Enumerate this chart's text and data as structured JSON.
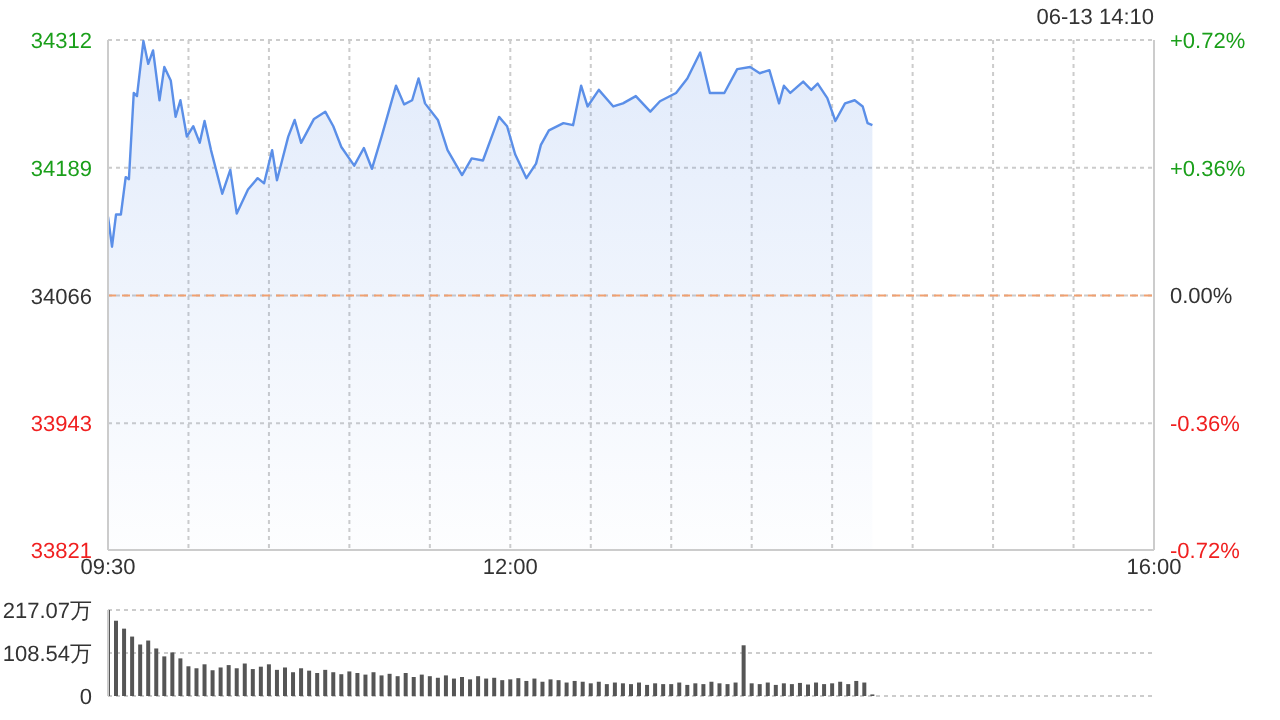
{
  "chart_data": [
    {
      "type": "area",
      "annotations": [
        "06-13 14:10"
      ],
      "xlim": [
        9.5,
        16
      ],
      "xticks": [
        {
          "value": 9.5,
          "label": "09:30"
        },
        {
          "value": 10,
          "label": null
        },
        {
          "value": 10.5,
          "label": null
        },
        {
          "value": 11,
          "label": null
        },
        {
          "value": 11.5,
          "label": null
        },
        {
          "value": 12,
          "label": "12:00"
        },
        {
          "value": 12.5,
          "label": null
        },
        {
          "value": 13,
          "label": null
        },
        {
          "value": 13.5,
          "label": null
        },
        {
          "value": 14,
          "label": null
        },
        {
          "value": 14.5,
          "label": null
        },
        {
          "value": 15,
          "label": null
        },
        {
          "value": 15.5,
          "label": null
        },
        {
          "value": 16,
          "label": "16:00"
        }
      ],
      "ylim": [
        33821,
        34312
      ],
      "yticks": [
        33821,
        33943,
        34066,
        34189,
        34312
      ],
      "y2lim": [
        -0.72,
        0.72
      ],
      "y2ticks": [
        {
          "value": -0.72,
          "label": "-0.72%"
        },
        {
          "value": -0.36,
          "label": "-0.36%"
        },
        {
          "value": 0,
          "label": "0.00%"
        },
        {
          "value": 0.36,
          "label": "+0.36%"
        },
        {
          "value": 0.72,
          "label": "+0.72%"
        }
      ],
      "grid": true,
      "ref_lines": [
        {
          "axis": "y",
          "value": 34066,
          "color": "#f0a070",
          "line_style": "dashed"
        }
      ],
      "series": [
        {
          "color": "#5b8fe8",
          "x": [
            9.5,
            9.525,
            9.55,
            9.58,
            9.61,
            9.63,
            9.66,
            9.68,
            9.72,
            9.75,
            9.78,
            9.82,
            9.85,
            9.89,
            9.92,
            9.95,
            9.99,
            10.03,
            10.07,
            10.1,
            10.14,
            10.21,
            10.26,
            10.3,
            10.37,
            10.43,
            10.47,
            10.52,
            10.55,
            10.62,
            10.66,
            10.7,
            10.78,
            10.85,
            10.9,
            10.95,
            11.03,
            11.09,
            11.14,
            11.2,
            11.29,
            11.34,
            11.39,
            11.43,
            11.47,
            11.55,
            11.61,
            11.7,
            11.76,
            11.83,
            11.93,
            11.98,
            12.03,
            12.1,
            12.16,
            12.19,
            12.24,
            12.33,
            12.39,
            12.44,
            12.48,
            12.55,
            12.64,
            12.7,
            12.78,
            12.87,
            12.93,
            13.03,
            13.1,
            13.18,
            13.24,
            13.33,
            13.41,
            13.49,
            13.55,
            13.61,
            13.67,
            13.7,
            13.74,
            13.82,
            13.87,
            13.91,
            13.97,
            14.02,
            14.08,
            14.14,
            14.19,
            14.22,
            14.25
          ],
          "values": [
            34142,
            34113,
            34144,
            34144,
            34180,
            34178,
            34261,
            34258,
            34311,
            34289,
            34302,
            34254,
            34286,
            34273,
            34238,
            34254,
            34219,
            34229,
            34213,
            34234,
            34206,
            34164,
            34187,
            34145,
            34168,
            34179,
            34174,
            34206,
            34177,
            34219,
            34235,
            34213,
            34236,
            34243,
            34229,
            34209,
            34191,
            34208,
            34188,
            34219,
            34268,
            34250,
            34254,
            34275,
            34251,
            34235,
            34206,
            34182,
            34198,
            34196,
            34238,
            34229,
            34202,
            34179,
            34193,
            34211,
            34225,
            34232,
            34230,
            34268,
            34248,
            34264,
            34248,
            34251,
            34258,
            34243,
            34253,
            34261,
            34275,
            34300,
            34261,
            34261,
            34284,
            34286,
            34280,
            34283,
            34251,
            34268,
            34261,
            34272,
            34264,
            34270,
            34256,
            34234,
            34251,
            34254,
            34248,
            34232,
            34230
          ]
        }
      ]
    },
    {
      "type": "bar",
      "xlim": [
        9.5,
        16
      ],
      "ylim": [
        0,
        217.07
      ],
      "yticks": [
        0,
        {
          "value": 108.54,
          "label": "108.54万"
        },
        {
          "value": 217.07,
          "label": "217.07万"
        }
      ],
      "grid": "y",
      "tick_labels": "y",
      "series": [
        {
          "color": "#555555",
          "x": [
            9.5,
            9.55,
            9.6,
            9.65,
            9.7,
            9.75,
            9.8,
            9.85,
            9.9,
            9.95,
            10,
            10.05,
            10.1,
            10.15,
            10.2,
            10.25,
            10.3,
            10.35,
            10.4,
            10.45,
            10.5,
            10.55,
            10.6,
            10.65,
            10.7,
            10.75,
            10.8,
            10.85,
            10.9,
            10.95,
            11,
            11.05,
            11.1,
            11.15,
            11.2,
            11.25,
            11.3,
            11.35,
            11.4,
            11.45,
            11.5,
            11.55,
            11.6,
            11.65,
            11.7,
            11.75,
            11.8,
            11.85,
            11.9,
            11.95,
            12,
            12.05,
            12.1,
            12.15,
            12.2,
            12.25,
            12.3,
            12.35,
            12.4,
            12.45,
            12.5,
            12.55,
            12.6,
            12.65,
            12.7,
            12.75,
            12.8,
            12.85,
            12.9,
            12.95,
            13,
            13.05,
            13.1,
            13.15,
            13.2,
            13.25,
            13.3,
            13.35,
            13.4,
            13.45,
            13.5,
            13.55,
            13.6,
            13.65,
            13.7,
            13.75,
            13.8,
            13.85,
            13.9,
            13.95,
            14,
            14.05,
            14.1,
            14.15,
            14.2,
            14.25
          ],
          "values": [
            217,
            190,
            170,
            150,
            130,
            140,
            120,
            100,
            110,
            95,
            75,
            70,
            80,
            65,
            72,
            78,
            70,
            82,
            68,
            74,
            80,
            66,
            72,
            60,
            70,
            64,
            58,
            66,
            60,
            55,
            62,
            58,
            54,
            60,
            52,
            56,
            50,
            58,
            48,
            54,
            50,
            46,
            52,
            44,
            48,
            42,
            50,
            44,
            46,
            40,
            42,
            45,
            38,
            44,
            36,
            42,
            40,
            34,
            38,
            36,
            32,
            36,
            30,
            34,
            32,
            30,
            34,
            28,
            32,
            30,
            30,
            34,
            28,
            32,
            30,
            36,
            32,
            30,
            34,
            128,
            32,
            30,
            34,
            28,
            32,
            30,
            33,
            29,
            34,
            30,
            32,
            36,
            30,
            38,
            34,
            4
          ]
        }
      ]
    }
  ]
}
